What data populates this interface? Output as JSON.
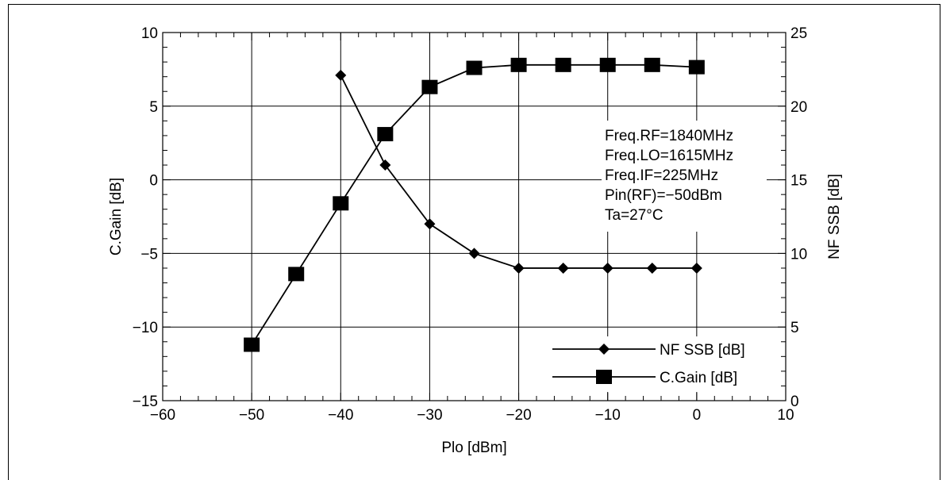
{
  "chart_data": {
    "type": "line",
    "xlabel": "Plo [dBm]",
    "ylabel_left": "C.Gain [dB]",
    "ylabel_right": "NF SSB [dB]",
    "xlim": [
      -60,
      10
    ],
    "ylim_left": [
      -15,
      10
    ],
    "ylim_right": [
      0,
      25
    ],
    "x_ticks": [
      -60,
      -50,
      -40,
      -30,
      -20,
      -10,
      0,
      10
    ],
    "x_tick_labels": [
      "−60",
      "−50",
      "−40",
      "−30",
      "−20",
      "−10",
      "0",
      "10"
    ],
    "y_left_ticks": [
      -15,
      -10,
      -5,
      0,
      5,
      10
    ],
    "y_left_tick_labels": [
      "−15",
      "−10",
      "−5",
      "0",
      "5",
      "10"
    ],
    "y_right_ticks": [
      0,
      5,
      10,
      15,
      20,
      25
    ],
    "y_right_tick_labels": [
      "0",
      "5",
      "10",
      "15",
      "20",
      "25"
    ],
    "grid": true,
    "legend_position": "bottom-right",
    "series": [
      {
        "name": "NF SSB [dB]",
        "axis": "right",
        "marker": "diamond",
        "x": [
          -40,
          -35,
          -30,
          -25,
          -20,
          -15,
          -10,
          -5,
          0
        ],
        "values": [
          22.1,
          16.0,
          12.0,
          10.0,
          9.0,
          9.0,
          9.0,
          9.0,
          9.0
        ]
      },
      {
        "name": "C.Gain [dB]",
        "axis": "left",
        "marker": "square",
        "x": [
          -50,
          -45,
          -40,
          -35,
          -30,
          -25,
          -20,
          -15,
          -10,
          -5,
          0
        ],
        "values": [
          -11.2,
          -6.4,
          -1.6,
          3.1,
          6.3,
          7.6,
          7.8,
          7.8,
          7.8,
          7.8,
          7.65
        ]
      }
    ],
    "annotations": [
      "Freq.RF=1840MHz",
      "Freq.LO=1615MHz",
      "Freq.IF=225MHz",
      "Pin(RF)=−50dBm",
      "Ta=27°C"
    ]
  }
}
